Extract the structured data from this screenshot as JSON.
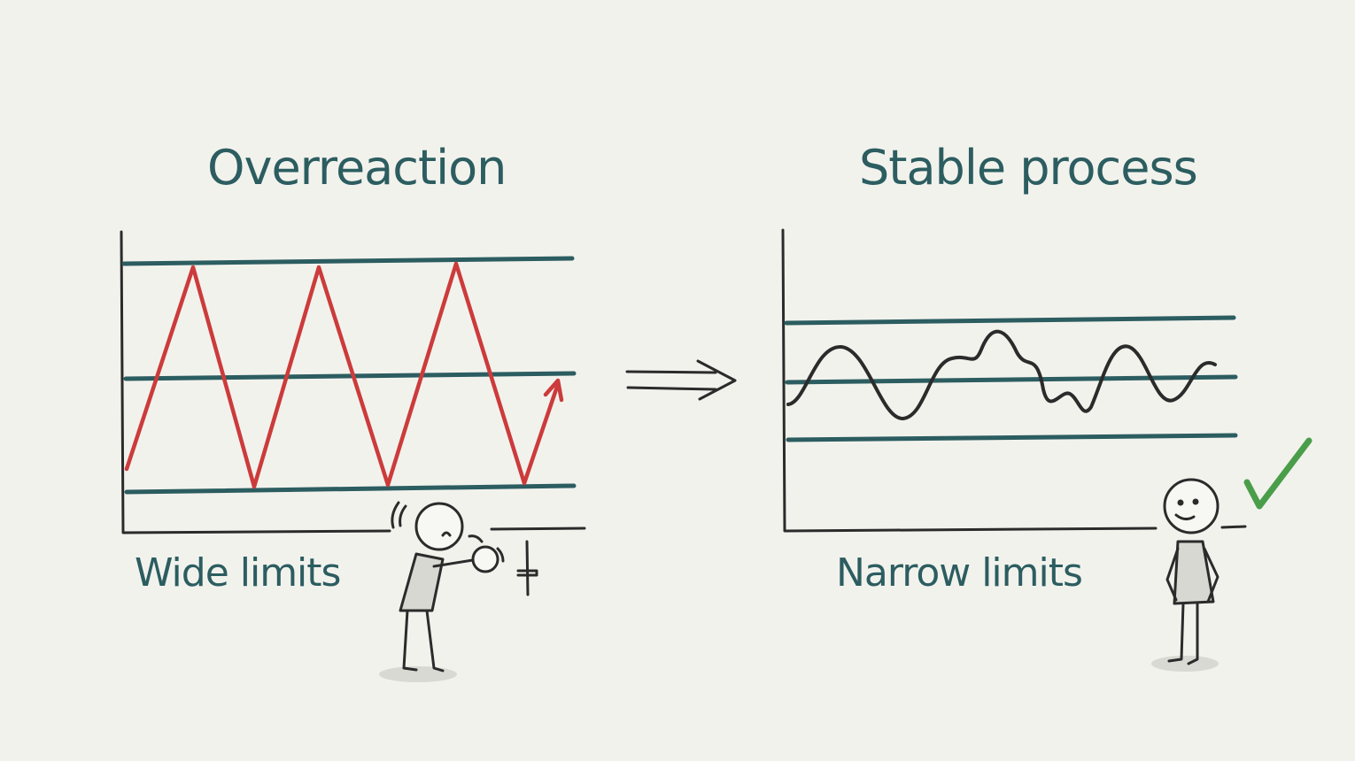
{
  "left_panel": {
    "title": "Overreaction",
    "caption": "Wide limits"
  },
  "right_panel": {
    "title": "Stable process",
    "caption": "Narrow limits"
  },
  "colors": {
    "background": "#f2f2ed",
    "limits": "#2c5d60",
    "overreaction_line": "#cc3b3b",
    "stable_line": "#2b2b2b",
    "checkmark": "#4a9e4a"
  },
  "icons": [
    "right-arrow-icon",
    "check-icon",
    "stressed-person-figure",
    "calm-person-figure"
  ]
}
